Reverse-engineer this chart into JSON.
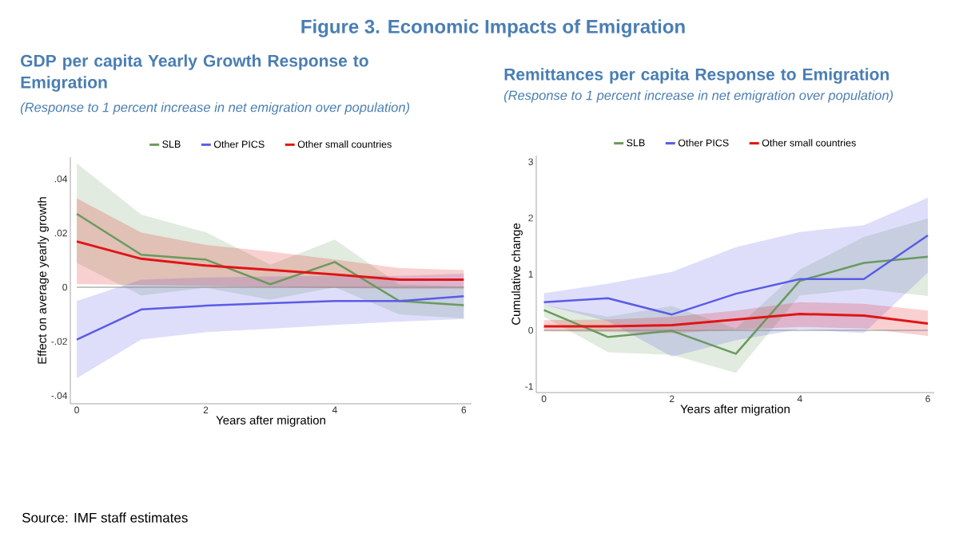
{
  "chart_data": [
    {
      "type": "line",
      "title": "GDP per capita Yearly Growth Response to Emigration",
      "subtitle": "(Response to 1 percent increase in net emigration over population)",
      "xlabel": "Years after migration",
      "ylabel": "Effect on average yearly growth",
      "legend": "top",
      "annotations": [
        "Figure 3. Economic Impacts of Emigration",
        "Source: IMF staff estimates"
      ],
      "x": [
        0,
        1,
        2,
        3,
        4,
        5,
        6
      ],
      "xlim": [
        -0.1,
        6.12
      ],
      "ylim": [
        -0.043,
        0.048
      ],
      "xticks": [
        0,
        2,
        4,
        6
      ],
      "yticks": [
        {
          "value": -0.04,
          "label": "-.04"
        },
        {
          "value": -0.02,
          "label": "-.02"
        },
        0,
        {
          "value": 0.02,
          "label": ".02"
        },
        {
          "value": 0.04,
          "label": ".04"
        }
      ],
      "ref_lines": [
        {
          "axis": "y",
          "value": 0,
          "color": "#8c8c8c"
        }
      ],
      "series": [
        {
          "name": "SLB",
          "color": "#6a9a5e",
          "values": [
            0.0271,
            0.012,
            0.0102,
            0.0011,
            0.0093,
            -0.0051,
            -0.0066
          ],
          "upper": [
            0.0457,
            0.0268,
            0.0203,
            0.0083,
            0.0176,
            0.001,
            0.0003
          ],
          "lower": [
            0.009,
            -0.003,
            -0.0002,
            -0.0046,
            0.0,
            -0.01,
            -0.0115
          ]
        },
        {
          "name": "Other PICS",
          "color": "#5b5be6",
          "values": [
            -0.0193,
            -0.0082,
            -0.0068,
            -0.0059,
            -0.0051,
            -0.0051,
            -0.0033
          ],
          "upper": [
            -0.0051,
            0.0028,
            0.0036,
            0.004,
            0.0042,
            0.0042,
            0.005
          ],
          "lower": [
            -0.0336,
            -0.0193,
            -0.0166,
            -0.0153,
            -0.0139,
            -0.0127,
            -0.0117
          ]
        },
        {
          "name": "Other small countries",
          "color": "#e01515",
          "values": [
            0.0169,
            0.0105,
            0.008,
            0.0064,
            0.0047,
            0.0028,
            0.0028
          ],
          "upper": [
            0.0328,
            0.0202,
            0.0156,
            0.0132,
            0.0102,
            0.0071,
            0.0063
          ],
          "lower": [
            0.0012,
            0.0008,
            0.0005,
            0.0,
            -0.0003,
            -0.0005,
            -0.0005
          ]
        }
      ]
    },
    {
      "type": "line",
      "title": "Remittances per capita Response to Emigration",
      "subtitle": "(Response to 1 percent increase in net emigration over population)",
      "xlabel": "Years after migration",
      "ylabel": "Cumulative change",
      "legend": "top",
      "x": [
        0,
        1,
        2,
        3,
        4,
        5,
        6
      ],
      "xlim": [
        -0.12,
        6.1
      ],
      "ylim": [
        -1.11,
        3.11
      ],
      "xticks": [
        0,
        2,
        4,
        6
      ],
      "yticks": [
        -1,
        0,
        1,
        2,
        3
      ],
      "ref_lines": [
        {
          "axis": "y",
          "value": 0,
          "color": "#8c8c8c"
        }
      ],
      "series": [
        {
          "name": "SLB",
          "color": "#6a9a5e",
          "values": [
            0.36,
            -0.12,
            -0.01,
            -0.42,
            0.88,
            1.2,
            1.31
          ],
          "upper": [
            0.45,
            0.24,
            0.43,
            0.03,
            1.08,
            1.66,
            1.99
          ],
          "lower": [
            0.24,
            -0.39,
            -0.44,
            -0.76,
            0.62,
            0.74,
            0.61
          ]
        },
        {
          "name": "Other PICS",
          "color": "#5b5be6",
          "values": [
            0.5,
            0.57,
            0.28,
            0.65,
            0.91,
            0.91,
            1.69
          ],
          "upper": [
            0.66,
            0.83,
            1.04,
            1.48,
            1.75,
            1.87,
            2.36
          ],
          "lower": [
            0.45,
            0.16,
            -0.47,
            -0.18,
            0.02,
            -0.05,
            1.03
          ]
        },
        {
          "name": "Other small countries",
          "color": "#e01515",
          "values": [
            0.07,
            0.07,
            0.09,
            0.19,
            0.29,
            0.26,
            0.12
          ],
          "upper": [
            0.18,
            0.19,
            0.24,
            0.35,
            0.5,
            0.47,
            0.35
          ],
          "lower": [
            -0.02,
            -0.03,
            -0.05,
            0.01,
            0.06,
            0.03,
            -0.1
          ]
        }
      ]
    }
  ]
}
